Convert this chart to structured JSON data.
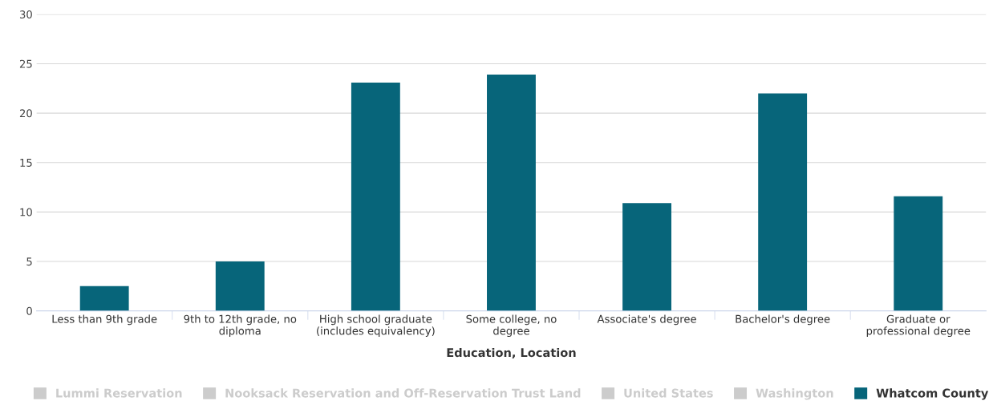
{
  "chart_data": {
    "type": "bar",
    "xlabel": "Education, Location",
    "categories": [
      "Less than 9th grade",
      "9th to 12th grade, no\ndiploma",
      "High school graduate\n(includes equivalency)",
      "Some college, no\ndegree",
      "Associate's degree",
      "Bachelor's degree",
      "Graduate or\nprofessional degree"
    ],
    "series": [
      {
        "name": "Lummi Reservation",
        "color": "#cccccc",
        "values": [
          null,
          null,
          null,
          null,
          null,
          null,
          null
        ]
      },
      {
        "name": "Nooksack Reservation and Off-Reservation Trust Land",
        "color": "#cccccc",
        "values": [
          null,
          null,
          null,
          null,
          null,
          null,
          null
        ]
      },
      {
        "name": "United States",
        "color": "#cccccc",
        "values": [
          null,
          null,
          null,
          null,
          null,
          null,
          null
        ]
      },
      {
        "name": "Washington",
        "color": "#cccccc",
        "values": [
          null,
          null,
          null,
          null,
          null,
          null,
          null
        ]
      },
      {
        "name": "Whatcom County",
        "color": "#07657a",
        "values": [
          2.5,
          5.0,
          23.1,
          23.9,
          10.9,
          22.0,
          11.6
        ]
      }
    ],
    "ylim": [
      0,
      30
    ],
    "yticks": [
      0,
      5,
      10,
      15,
      20,
      25,
      30
    ],
    "grid": "y",
    "legend": "bottom"
  }
}
